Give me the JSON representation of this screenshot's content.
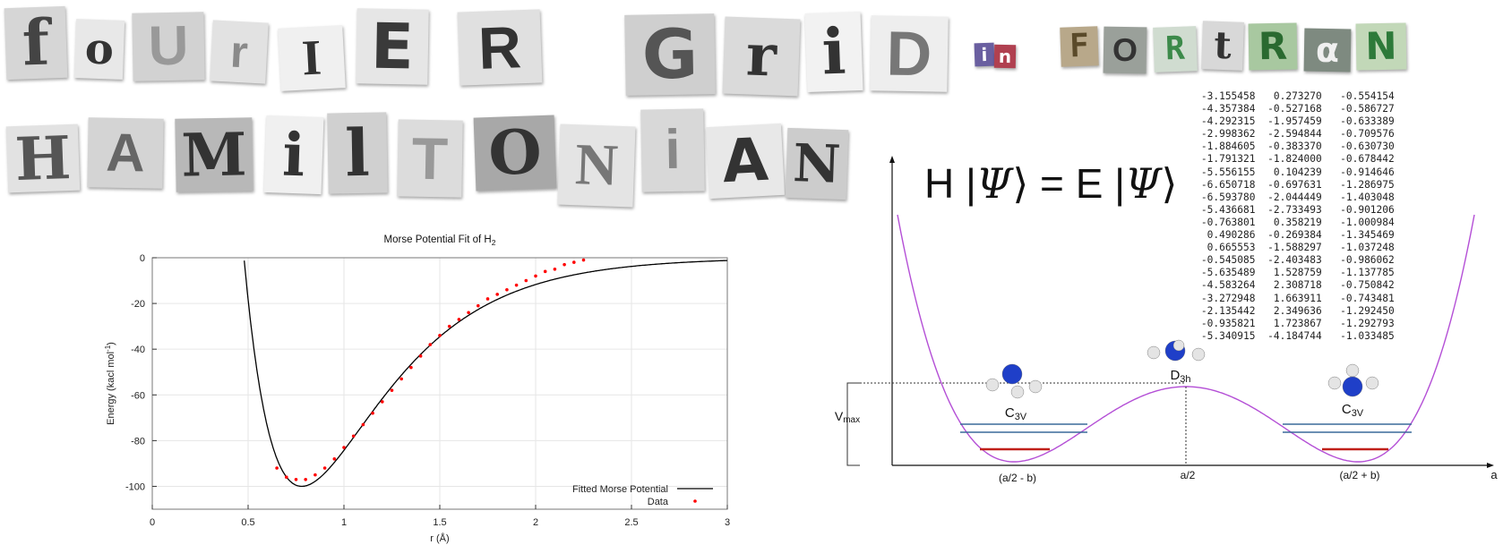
{
  "title": {
    "line1_word1": [
      "f",
      "o",
      "U",
      "r",
      "I",
      "E",
      "R"
    ],
    "line1_word2": [
      "G",
      "r",
      "i",
      "D"
    ],
    "connector": [
      "i",
      "n"
    ],
    "line1_word3": [
      "F",
      "O",
      "R",
      "t",
      "R",
      "α",
      "N"
    ],
    "line2_word1": [
      "H",
      "A",
      "M",
      "i",
      "l",
      "T",
      "O",
      "N",
      "i",
      "A",
      "N"
    ]
  },
  "equation": {
    "lhs_operator": "H",
    "psi": "Ψ",
    "equals": "=",
    "rhs_operator": "E"
  },
  "number_table": [
    [
      "-3.155458",
      "0.273270",
      "-0.554154"
    ],
    [
      "-4.357384",
      "-0.527168",
      "-0.586727"
    ],
    [
      "-4.292315",
      "-1.957459",
      "-0.633389"
    ],
    [
      "-2.998362",
      "-2.594844",
      "-0.709576"
    ],
    [
      "-1.884605",
      "-0.383370",
      "-0.630730"
    ],
    [
      "-1.791321",
      "-1.824000",
      "-0.678442"
    ],
    [
      "-5.556155",
      "0.104239",
      "-0.914646"
    ],
    [
      "-6.650718",
      "-0.697631",
      "-1.286975"
    ],
    [
      "-6.593780",
      "-2.044449",
      "-1.403048"
    ],
    [
      "-5.436681",
      "-2.733493",
      "-0.901206"
    ],
    [
      "-0.763801",
      "0.358219",
      "-1.000984"
    ],
    [
      "0.490286",
      "-0.269384",
      "-1.345469"
    ],
    [
      "0.665553",
      "-1.588297",
      "-1.037248"
    ],
    [
      "-0.545085",
      "-2.403483",
      "-0.986062"
    ],
    [
      "-5.635489",
      "1.528759",
      "-1.137785"
    ],
    [
      "-4.583264",
      "2.308718",
      "-0.750842"
    ],
    [
      "-3.272948",
      "1.663911",
      "-0.743481"
    ],
    [
      "-2.135442",
      "2.349636",
      "-1.292450"
    ],
    [
      "-0.935821",
      "1.723867",
      "-1.292793"
    ],
    [
      "-5.340915",
      "-4.184744",
      "-1.033485"
    ]
  ],
  "chart_data": {
    "type": "line",
    "title_main": "Morse Potential Fit of H",
    "title_sub": "2",
    "xlabel": "r (Å)",
    "ylabel": "Energy (kacl mol",
    "ylabel_sup": "-1",
    "ylabel_end": ")",
    "xlim": [
      0,
      3
    ],
    "ylim": [
      -110,
      0
    ],
    "xticks": [
      "0",
      "0.5",
      "1",
      "1.5",
      "2",
      "2.5",
      "3"
    ],
    "yticks": [
      "0",
      "-20",
      "-40",
      "-60",
      "-80",
      "-100"
    ],
    "xtick_values": [
      0,
      0.5,
      1,
      1.5,
      2,
      2.5,
      3
    ],
    "ytick_values": [
      0,
      -20,
      -40,
      -60,
      -80,
      -100
    ],
    "grid": true,
    "legend_position": "bottom-right",
    "series": [
      {
        "name": "Fitted Morse Potential",
        "kind": "line",
        "color": "#000000",
        "morse": {
          "De": 100,
          "a": 2.3,
          "re": 0.78,
          "xmin": 0.48,
          "xmax": 3.0
        }
      },
      {
        "name": "Data",
        "kind": "scatter",
        "color": "#ff0000",
        "x": [
          0.65,
          0.7,
          0.75,
          0.8,
          0.85,
          0.9,
          0.95,
          1.0,
          1.05,
          1.1,
          1.15,
          1.2,
          1.25,
          1.3,
          1.35,
          1.4,
          1.45,
          1.5,
          1.55,
          1.6,
          1.65,
          1.7,
          1.75,
          1.8,
          1.85,
          1.9,
          1.95,
          2.0,
          2.05,
          2.1,
          2.15,
          2.2,
          2.25
        ],
        "y": [
          -92,
          -96,
          -97,
          -97,
          -95,
          -92,
          -88,
          -83,
          -78,
          -73,
          -68,
          -63,
          -58,
          -53,
          -48,
          -43,
          -38,
          -34,
          -30,
          -27,
          -24,
          -21,
          -18,
          -16,
          -14,
          -12,
          -10,
          -8,
          -6,
          -5,
          -3,
          -2,
          -1
        ]
      }
    ]
  },
  "diagram": {
    "vmax_label": "V",
    "vmax_sub": "max",
    "left_well_label": "C",
    "left_well_sub": "3V",
    "right_well_label": "C",
    "right_well_sub": "3V",
    "barrier_label": "D",
    "barrier_sub": "3h",
    "x_left_label": "(a/2  - b)",
    "x_mid_label": "a/2",
    "x_right_label": "(a/2  + b)",
    "axis_label": "a",
    "curve_color": "#b44fd6",
    "level_color_blue": "#3a6a9a",
    "level_color_red": "#c0201a"
  }
}
